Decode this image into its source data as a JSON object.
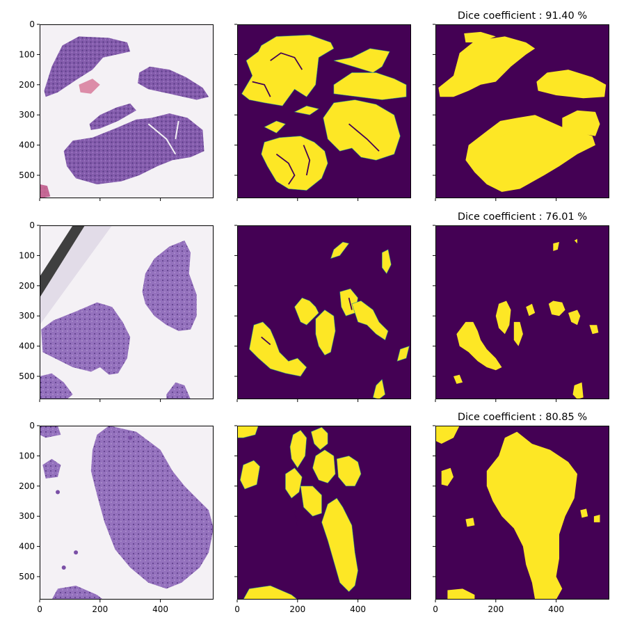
{
  "chart_data": {
    "type": "image-grid",
    "rows": 3,
    "cols": 3,
    "image_extent": [
      0,
      576
    ],
    "xticks": [
      0,
      200,
      400
    ],
    "yticks": [
      0,
      100,
      200,
      300,
      400,
      500
    ],
    "sharex": true,
    "sharey": true,
    "colors": {
      "mask_background": "#440154",
      "mask_foreground": "#fde725",
      "mask_edge": "#21918c",
      "tissue_stain": "#7a4fa6",
      "tissue_dark": "#4b2a7a",
      "tissue_pink": "#d46a8e",
      "slide_background": "#f4f1f5"
    },
    "panels": [
      {
        "row": 0,
        "col": 0,
        "kind": "tissue",
        "title": ""
      },
      {
        "row": 0,
        "col": 1,
        "kind": "ground-truth-mask",
        "title": ""
      },
      {
        "row": 0,
        "col": 2,
        "kind": "predicted-mask",
        "title": "Dice coefficient : 91.40 %",
        "dice_percent": 91.4
      },
      {
        "row": 1,
        "col": 0,
        "kind": "tissue",
        "title": ""
      },
      {
        "row": 1,
        "col": 1,
        "kind": "ground-truth-mask",
        "title": ""
      },
      {
        "row": 1,
        "col": 2,
        "kind": "predicted-mask",
        "title": "Dice coefficient : 76.01 %",
        "dice_percent": 76.01
      },
      {
        "row": 2,
        "col": 0,
        "kind": "tissue",
        "title": ""
      },
      {
        "row": 2,
        "col": 1,
        "kind": "ground-truth-mask",
        "title": ""
      },
      {
        "row": 2,
        "col": 2,
        "kind": "predicted-mask",
        "title": "Dice coefficient : 80.85 %",
        "dice_percent": 80.85
      }
    ]
  }
}
